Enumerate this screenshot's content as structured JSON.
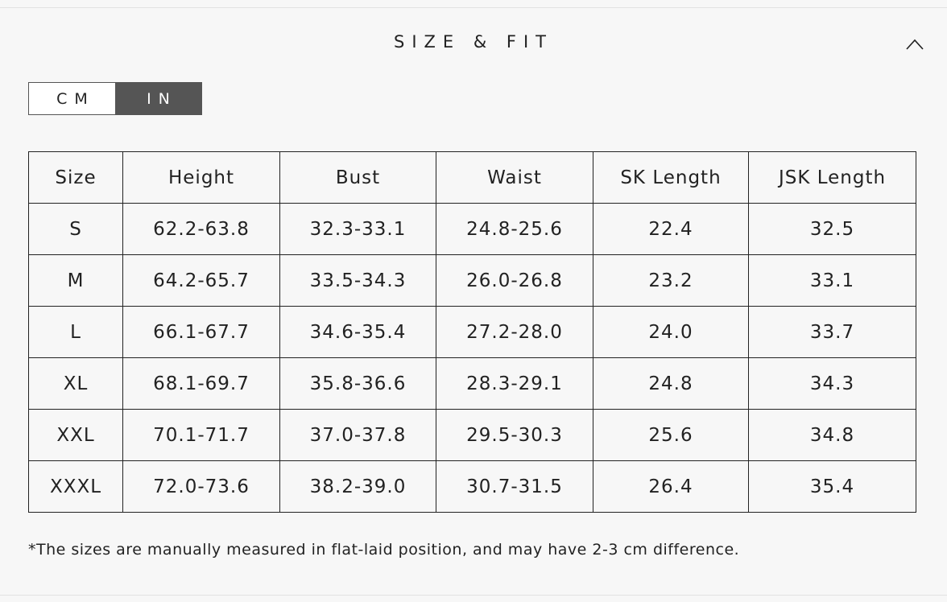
{
  "header": {
    "title": "SIZE & FIT"
  },
  "unit_toggle": {
    "options": [
      "CM",
      "IN"
    ],
    "selected": "IN"
  },
  "table": {
    "columns": [
      "Size",
      "Height",
      "Bust",
      "Waist",
      "SK Length",
      "JSK Length"
    ],
    "rows": [
      [
        "S",
        "62.2-63.8",
        "32.3-33.1",
        "24.8-25.6",
        "22.4",
        "32.5"
      ],
      [
        "M",
        "64.2-65.7",
        "33.5-34.3",
        "26.0-26.8",
        "23.2",
        "33.1"
      ],
      [
        "L",
        "66.1-67.7",
        "34.6-35.4",
        "27.2-28.0",
        "24.0",
        "33.7"
      ],
      [
        "XL",
        "68.1-69.7",
        "35.8-36.6",
        "28.3-29.1",
        "24.8",
        "34.3"
      ],
      [
        "XXL",
        "70.1-71.7",
        "37.0-37.8",
        "29.5-30.3",
        "25.6",
        "34.8"
      ],
      [
        "XXXL",
        "72.0-73.6",
        "38.2-39.0",
        "30.7-31.5",
        "26.4",
        "35.4"
      ]
    ]
  },
  "note": "*The sizes are manually measured in flat-laid position, and may have 2-3 cm difference."
}
